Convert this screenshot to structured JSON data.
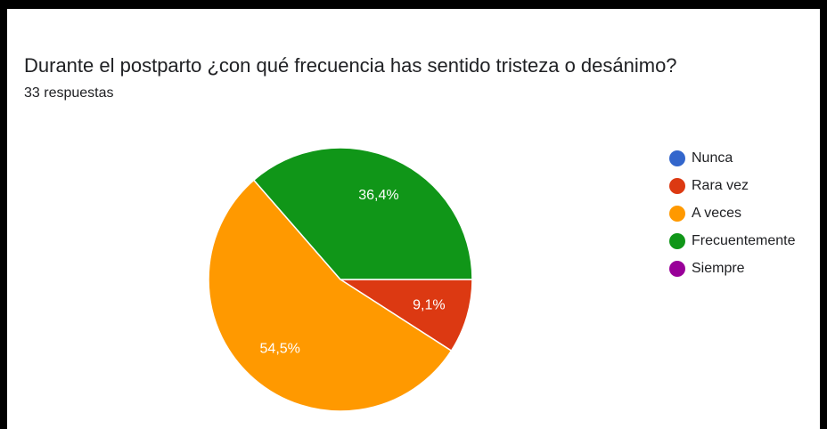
{
  "chart_data": {
    "type": "pie",
    "title": "Durante el postparto ¿con qué frecuencia has sentido tristeza o desánimo?",
    "subtitle": "33 respuestas",
    "categories": [
      "Nunca",
      "Rara vez",
      "A veces",
      "Frecuentemente",
      "Siempre"
    ],
    "values": [
      0,
      9.1,
      54.5,
      36.4,
      0
    ],
    "value_labels": [
      null,
      "9,1%",
      "54,5%",
      "36,4%",
      null
    ],
    "colors": [
      "#3366cc",
      "#dc3912",
      "#ff9900",
      "#109618",
      "#990099"
    ],
    "legend": "right"
  }
}
